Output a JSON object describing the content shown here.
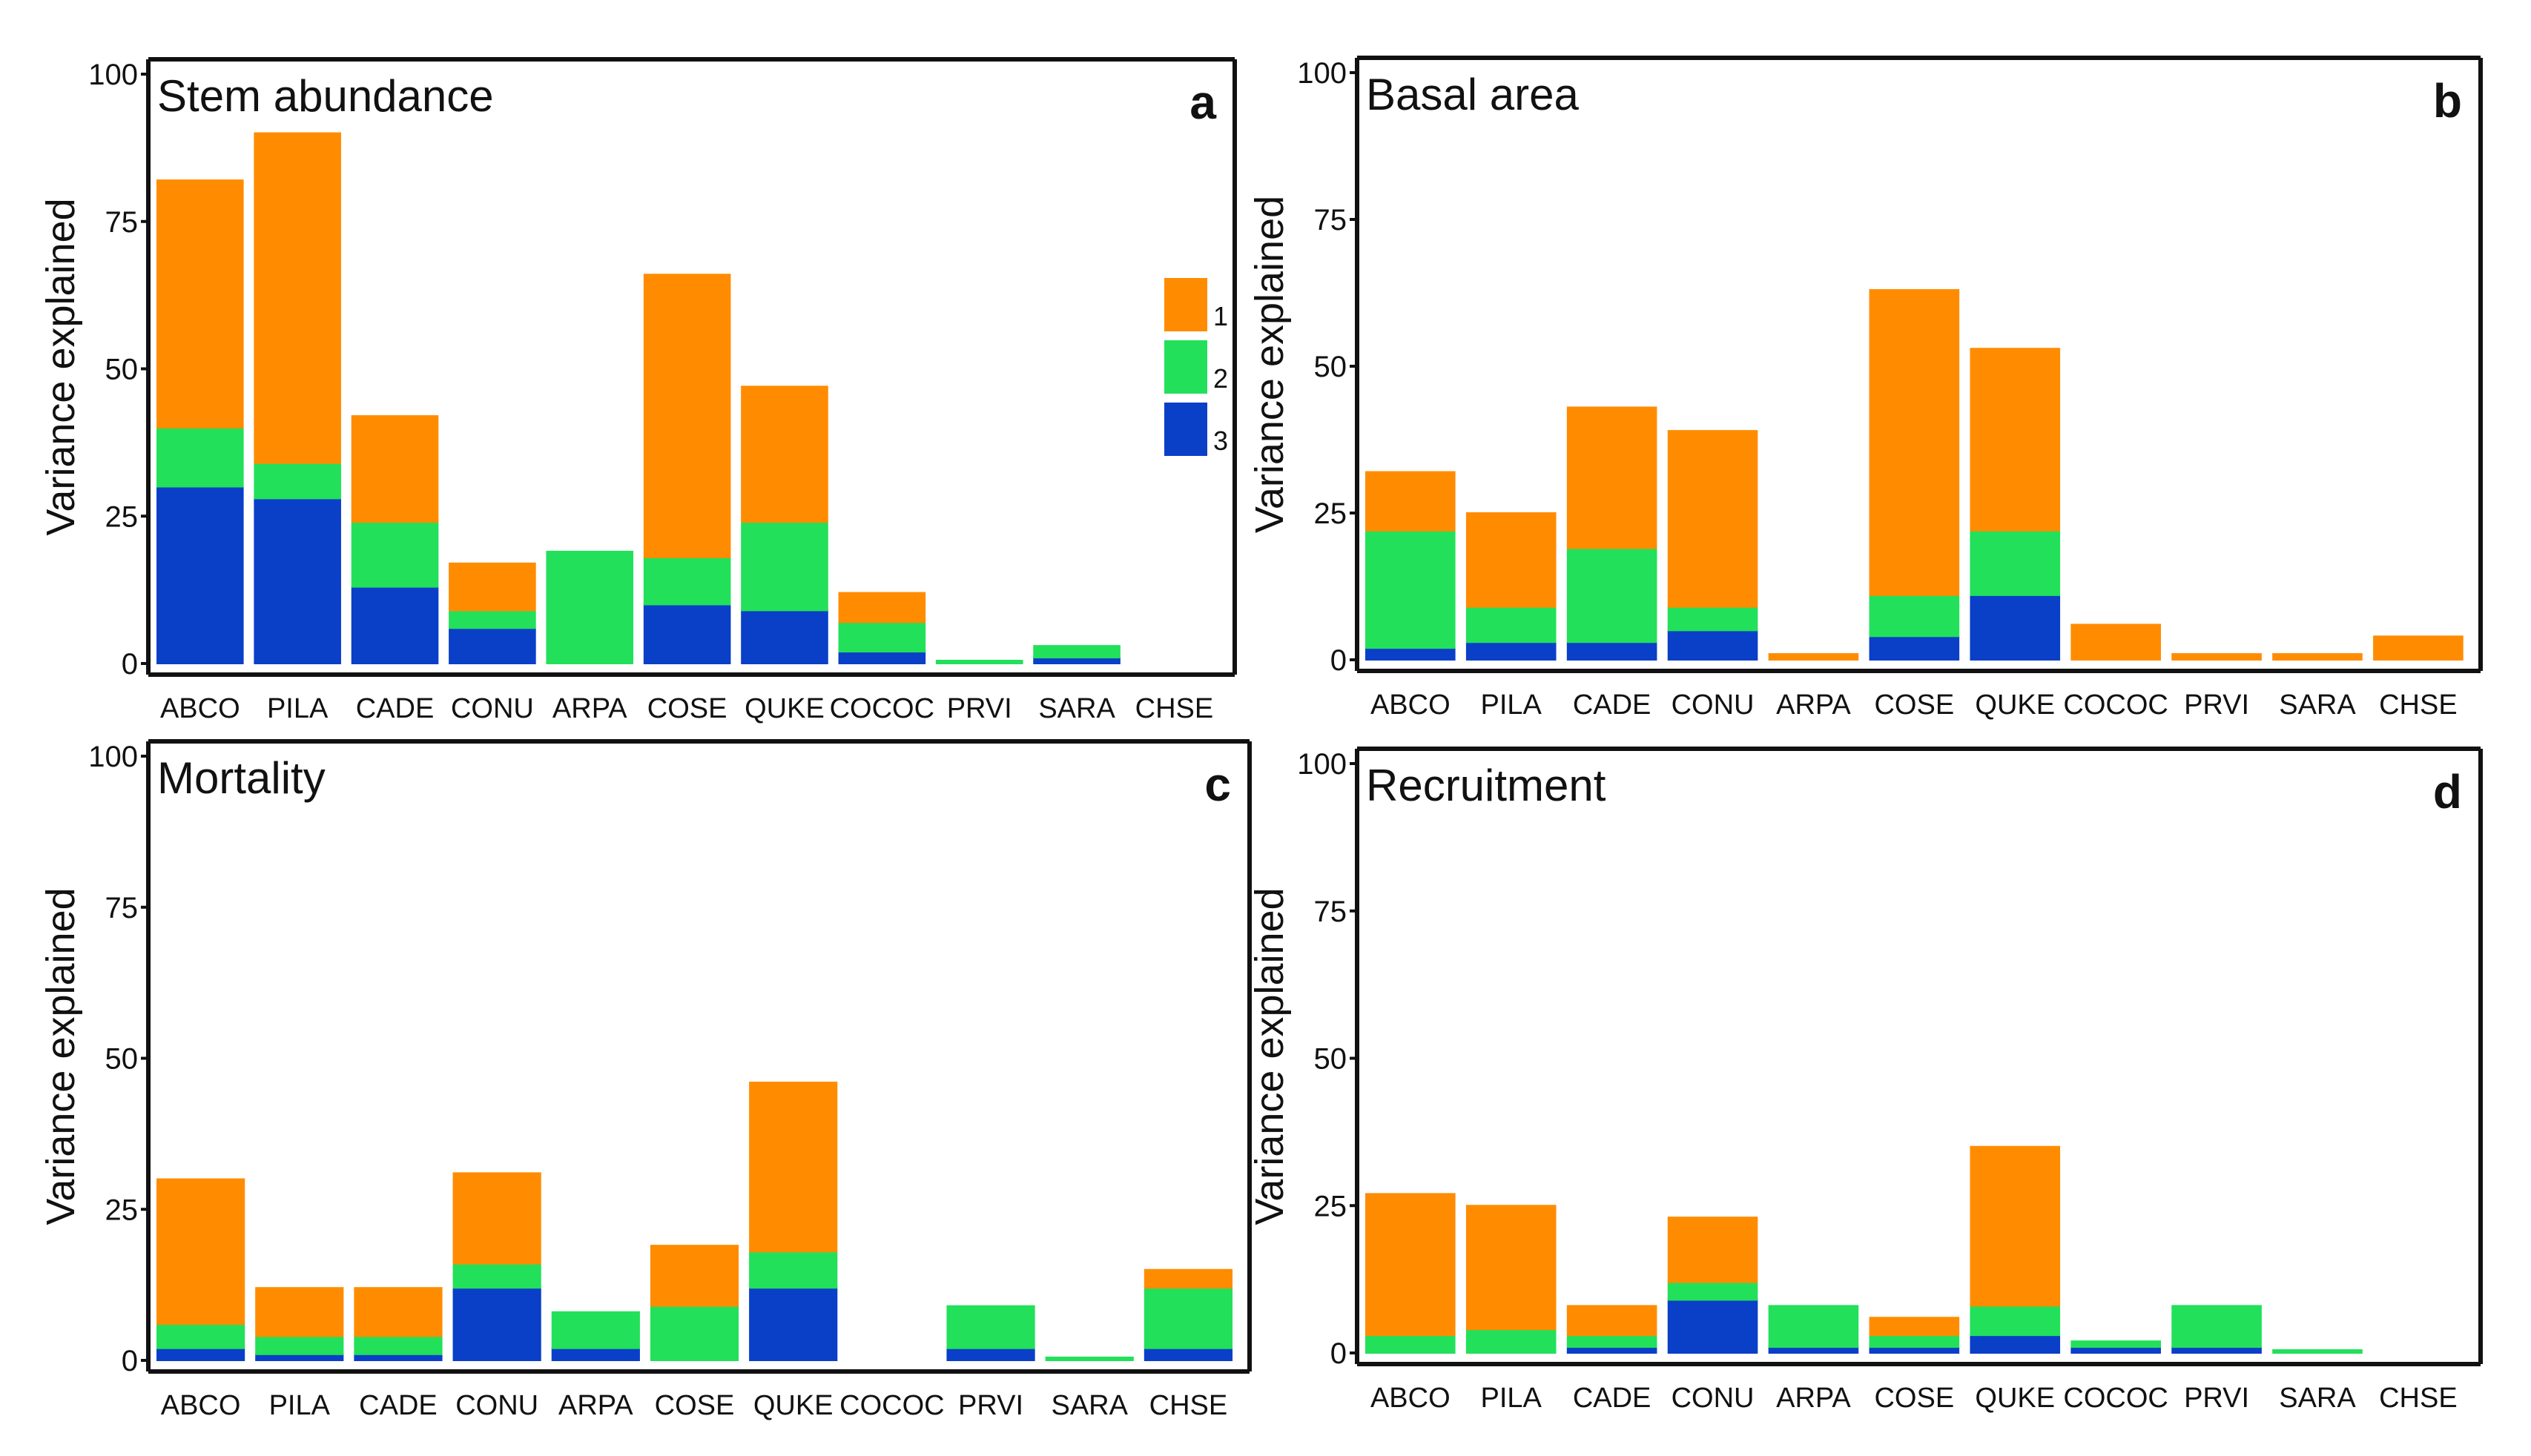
{
  "colors": {
    "comp1": "#FF8C00",
    "comp2": "#22E05A",
    "comp3": "#0A3FC8",
    "frame": "#111111"
  },
  "legend": [
    {
      "label": "1",
      "color": "#FF8C00"
    },
    {
      "label": "2",
      "color": "#22E05A"
    },
    {
      "label": "3",
      "color": "#0A3FC8"
    }
  ],
  "chart_data": [
    {
      "type": "bar",
      "stacked": true,
      "title": "Stem abundance",
      "panel_letter": "a",
      "ylabel": "Variance explained",
      "xlabel": "",
      "ylim": [
        0,
        100
      ],
      "yticks": [
        "0",
        "25",
        "50",
        "75",
        "100"
      ],
      "categories": [
        "ABCO",
        "PILA",
        "CADE",
        "CONU",
        "ARPA",
        "COSE",
        "QUKE",
        "COCOC",
        "PRVI",
        "SARA",
        "CHSE"
      ],
      "series": [
        {
          "name": "3",
          "values": [
            30,
            28,
            13,
            6,
            0,
            10,
            9,
            2,
            0,
            1,
            0
          ]
        },
        {
          "name": "2",
          "values": [
            10,
            6,
            11,
            3,
            19,
            8,
            15,
            5,
            0.5,
            2,
            0
          ]
        },
        {
          "name": "1",
          "values": [
            42,
            56,
            18,
            8,
            0,
            48,
            23,
            5,
            0,
            0,
            0
          ]
        }
      ],
      "legend_position": "right"
    },
    {
      "type": "bar",
      "stacked": true,
      "title": "Basal area",
      "panel_letter": "b",
      "ylabel": "Variance explained",
      "xlabel": "",
      "ylim": [
        0,
        100
      ],
      "yticks": [
        "0",
        "25",
        "50",
        "75",
        "100"
      ],
      "categories": [
        "ABCO",
        "PILA",
        "CADE",
        "CONU",
        "ARPA",
        "COSE",
        "QUKE",
        "COCOC",
        "PRVI",
        "SARA",
        "CHSE"
      ],
      "series": [
        {
          "name": "3",
          "values": [
            2,
            3,
            3,
            5,
            0,
            4,
            11,
            0,
            0,
            0,
            0
          ]
        },
        {
          "name": "2",
          "values": [
            20,
            6,
            16,
            4,
            0,
            7,
            11,
            0,
            0,
            0,
            0
          ]
        },
        {
          "name": "1",
          "values": [
            10,
            16,
            24,
            30,
            1,
            52,
            31,
            6,
            1,
            1,
            4
          ]
        }
      ]
    },
    {
      "type": "bar",
      "stacked": true,
      "title": "Mortality",
      "panel_letter": "c",
      "ylabel": "Variance explained",
      "xlabel": "",
      "ylim": [
        0,
        100
      ],
      "yticks": [
        "0",
        "25",
        "50",
        "75",
        "100"
      ],
      "categories": [
        "ABCO",
        "PILA",
        "CADE",
        "CONU",
        "ARPA",
        "COSE",
        "QUKE",
        "COCOC",
        "PRVI",
        "SARA",
        "CHSE"
      ],
      "series": [
        {
          "name": "3",
          "values": [
            2,
            1,
            1,
            12,
            2,
            0,
            12,
            0,
            2,
            0,
            2
          ]
        },
        {
          "name": "2",
          "values": [
            4,
            3,
            3,
            4,
            6,
            9,
            6,
            0,
            7,
            0.5,
            10
          ]
        },
        {
          "name": "1",
          "values": [
            24,
            8,
            8,
            15,
            0,
            10,
            28,
            0,
            0,
            0,
            3
          ]
        }
      ]
    },
    {
      "type": "bar",
      "stacked": true,
      "title": "Recruitment",
      "panel_letter": "d",
      "ylabel": "Variance explained",
      "xlabel": "",
      "ylim": [
        0,
        100
      ],
      "yticks": [
        "0",
        "25",
        "50",
        "75",
        "100"
      ],
      "categories": [
        "ABCO",
        "PILA",
        "CADE",
        "CONU",
        "ARPA",
        "COSE",
        "QUKE",
        "COCOC",
        "PRVI",
        "SARA",
        "CHSE"
      ],
      "series": [
        {
          "name": "3",
          "values": [
            0,
            0,
            1,
            9,
            1,
            1,
            3,
            1,
            1,
            0,
            0
          ]
        },
        {
          "name": "2",
          "values": [
            3,
            4,
            2,
            3,
            7,
            2,
            5,
            1,
            7,
            0.5,
            0
          ]
        },
        {
          "name": "1",
          "values": [
            24,
            21,
            5,
            11,
            0,
            3,
            27,
            0,
            0,
            0,
            0
          ]
        }
      ]
    }
  ]
}
